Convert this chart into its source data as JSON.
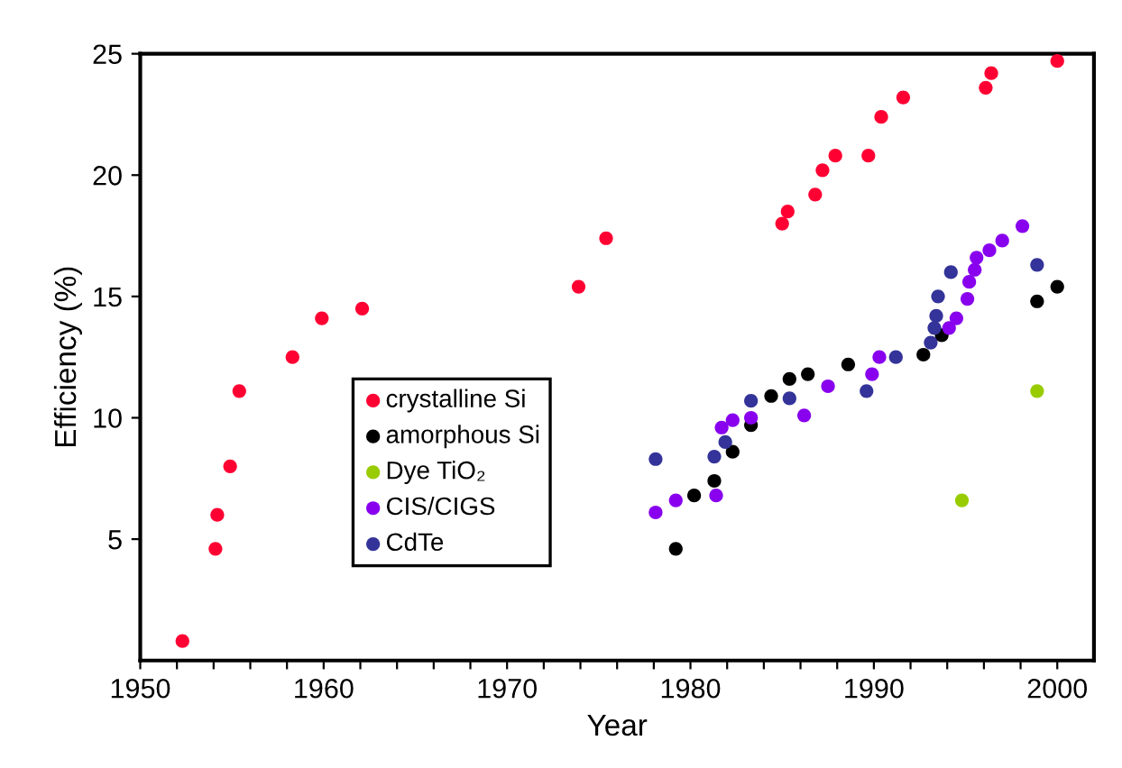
{
  "chart_data": {
    "type": "scatter",
    "xlabel": "Year",
    "ylabel": "Efficiency (%)",
    "xlim": [
      1950,
      2002
    ],
    "ylim": [
      0,
      25
    ],
    "xticks": [
      1950,
      {
        "value": 1952,
        "label": null
      },
      {
        "value": 1954,
        "label": null
      },
      {
        "value": 1956,
        "label": null
      },
      {
        "value": 1958,
        "label": null
      },
      1960,
      {
        "value": 1962,
        "label": null
      },
      {
        "value": 1964,
        "label": null
      },
      {
        "value": 1966,
        "label": null
      },
      {
        "value": 1968,
        "label": null
      },
      1970,
      {
        "value": 1972,
        "label": null
      },
      {
        "value": 1974,
        "label": null
      },
      {
        "value": 1976,
        "label": null
      },
      {
        "value": 1978,
        "label": null
      },
      1980,
      {
        "value": 1982,
        "label": null
      },
      {
        "value": 1984,
        "label": null
      },
      {
        "value": 1986,
        "label": null
      },
      {
        "value": 1988,
        "label": null
      },
      1990,
      {
        "value": 1992,
        "label": null
      },
      {
        "value": 1994,
        "label": null
      },
      {
        "value": 1996,
        "label": null
      },
      {
        "value": 1998,
        "label": null
      },
      2000
    ],
    "yticks": [
      5,
      10,
      15,
      20,
      25
    ],
    "grid": false,
    "legend": "center left",
    "marker": "circle",
    "series": [
      {
        "name": "crystalline Si",
        "color": "#ff0033",
        "x": [
          1952.3,
          1954.1,
          1954.2,
          1954.9,
          1955.4,
          1958.3,
          1959.9,
          1962.1,
          1973.9,
          1975.4,
          1985.0,
          1985.3,
          1986.8,
          1987.2,
          1987.9,
          1989.7,
          1990.4,
          1991.6,
          1996.1,
          1996.4,
          2000.0
        ],
        "values": [
          0.8,
          4.6,
          6.0,
          8.0,
          11.1,
          12.5,
          14.1,
          14.5,
          15.4,
          17.4,
          18.0,
          18.5,
          19.2,
          20.2,
          20.8,
          20.8,
          22.4,
          23.2,
          23.6,
          24.2,
          24.7
        ]
      },
      {
        "name": "amorphous Si",
        "color": "#000000",
        "x": [
          1979.2,
          1980.2,
          1981.3,
          1982.3,
          1983.3,
          1984.4,
          1985.4,
          1986.4,
          1988.6,
          1992.7,
          1993.7,
          1998.9,
          2000.0
        ],
        "values": [
          4.6,
          6.8,
          7.4,
          8.6,
          9.7,
          10.9,
          11.6,
          11.8,
          12.2,
          12.6,
          13.4,
          14.8,
          15.4
        ]
      },
      {
        "name": "Dye TiO₂",
        "color": "#99cc00",
        "x": [
          1994.8,
          1998.9
        ],
        "values": [
          6.6,
          11.1
        ]
      },
      {
        "name": "CIS/CIGS",
        "color": "#8800ee",
        "x": [
          1978.1,
          1979.2,
          1981.4,
          1981.7,
          1982.3,
          1983.3,
          1986.2,
          1987.5,
          1989.9,
          1990.3,
          1994.1,
          1994.5,
          1995.1,
          1995.2,
          1995.5,
          1995.6,
          1996.3,
          1997.0,
          1998.1
        ],
        "values": [
          6.1,
          6.6,
          6.8,
          9.6,
          9.9,
          10.0,
          10.1,
          11.3,
          11.8,
          12.5,
          13.7,
          14.1,
          14.9,
          15.6,
          16.1,
          16.6,
          16.9,
          17.3,
          17.9
        ]
      },
      {
        "name": "CdTe",
        "color": "#333399",
        "x": [
          1978.1,
          1981.3,
          1981.9,
          1983.3,
          1985.4,
          1989.6,
          1991.2,
          1993.1,
          1993.3,
          1993.4,
          1993.5,
          1994.2,
          1998.9
        ],
        "values": [
          8.3,
          8.4,
          9.0,
          10.7,
          10.8,
          11.1,
          12.5,
          13.1,
          13.7,
          14.2,
          15.0,
          16.0,
          16.3
        ]
      }
    ]
  }
}
